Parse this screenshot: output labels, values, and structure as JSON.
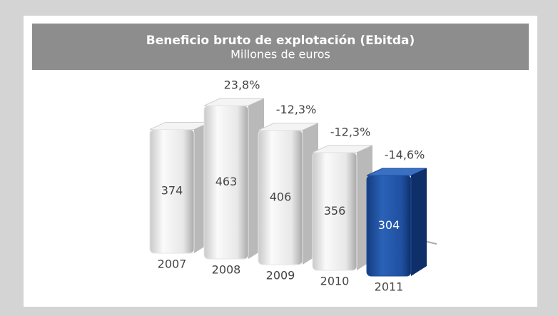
{
  "chart_data": {
    "type": "bar3d",
    "title": "Beneficio bruto de explotación (Ebitda)",
    "subtitle": "Millones de euros",
    "categories": [
      "2007",
      "2008",
      "2009",
      "2010",
      "2011"
    ],
    "values": [
      374,
      463,
      406,
      356,
      304
    ],
    "colors": [
      "#e6e6e6",
      "#e6e6e6",
      "#e6e6e6",
      "#e6e6e6",
      "#1f4f9f"
    ],
    "annotations": [
      null,
      "23,8%",
      "-12,3%",
      "-12,3%",
      "-14,6%"
    ],
    "ylim": [
      0,
      500
    ]
  }
}
